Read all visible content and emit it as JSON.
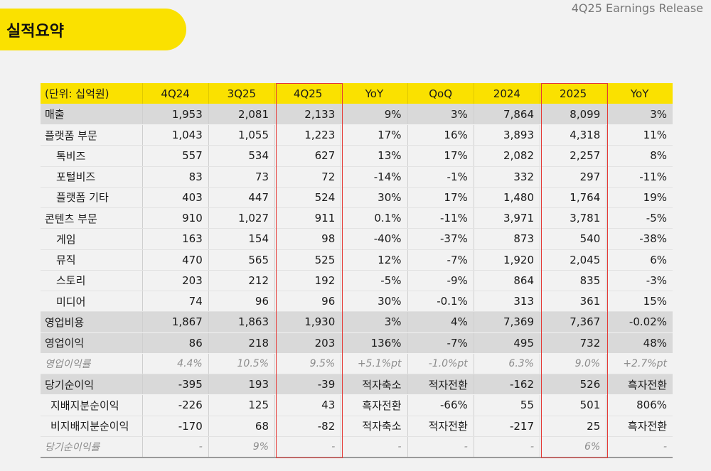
{
  "header": {
    "title": "실적요약",
    "report_label": "4Q25 Earnings Release"
  },
  "table": {
    "columns": [
      "(단위: 십억원)",
      "4Q24",
      "3Q25",
      "4Q25",
      "YoY",
      "QoQ",
      "2024",
      "2025",
      "YoY"
    ],
    "rows": [
      {
        "label": "매출",
        "style": "shade",
        "cells": [
          "1,953",
          "2,081",
          "2,133",
          "9%",
          "3%",
          "7,864",
          "8,099",
          "3%"
        ]
      },
      {
        "label": "플랫폼 부문",
        "style": "normal",
        "cells": [
          "1,043",
          "1,055",
          "1,223",
          "17%",
          "16%",
          "3,893",
          "4,318",
          "11%"
        ]
      },
      {
        "label": "톡비즈",
        "style": "sub",
        "cells": [
          "557",
          "534",
          "627",
          "13%",
          "17%",
          "2,082",
          "2,257",
          "8%"
        ]
      },
      {
        "label": "포털비즈",
        "style": "sub",
        "cells": [
          "83",
          "73",
          "72",
          "-14%",
          "-1%",
          "332",
          "297",
          "-11%"
        ]
      },
      {
        "label": "플랫폼 기타",
        "style": "sub",
        "cells": [
          "403",
          "447",
          "524",
          "30%",
          "17%",
          "1,480",
          "1,764",
          "19%"
        ]
      },
      {
        "label": "콘텐츠 부문",
        "style": "normal",
        "cells": [
          "910",
          "1,027",
          "911",
          "0.1%",
          "-11%",
          "3,971",
          "3,781",
          "-5%"
        ]
      },
      {
        "label": "게임",
        "style": "sub",
        "cells": [
          "163",
          "154",
          "98",
          "-40%",
          "-37%",
          "873",
          "540",
          "-38%"
        ]
      },
      {
        "label": "뮤직",
        "style": "sub",
        "cells": [
          "470",
          "565",
          "525",
          "12%",
          "-7%",
          "1,920",
          "2,045",
          "6%"
        ]
      },
      {
        "label": "스토리",
        "style": "sub",
        "cells": [
          "203",
          "212",
          "192",
          "-5%",
          "-9%",
          "864",
          "835",
          "-3%"
        ]
      },
      {
        "label": "미디어",
        "style": "sub",
        "cells": [
          "74",
          "96",
          "96",
          "30%",
          "-0.1%",
          "313",
          "361",
          "15%"
        ]
      },
      {
        "label": "영업비용",
        "style": "shade",
        "cells": [
          "1,867",
          "1,863",
          "1,930",
          "3%",
          "4%",
          "7,369",
          "7,367",
          "-0.02%"
        ]
      },
      {
        "label": "영업이익",
        "style": "shade",
        "cells": [
          "86",
          "218",
          "203",
          "136%",
          "-7%",
          "495",
          "732",
          "48%"
        ]
      },
      {
        "label": "영업이익률",
        "style": "italic",
        "cells": [
          "4.4%",
          "10.5%",
          "9.5%",
          "+5.1%pt",
          "-1.0%pt",
          "6.3%",
          "9.0%",
          "+2.7%pt"
        ]
      },
      {
        "label": "당기순이익",
        "style": "shade",
        "cells": [
          "-395",
          "193",
          "-39",
          "적자축소",
          "적자전환",
          "-162",
          "526",
          "흑자전환"
        ]
      },
      {
        "label": "지배지분순이익",
        "style": "sub2",
        "cells": [
          "-226",
          "125",
          "43",
          "흑자전환",
          "-66%",
          "55",
          "501",
          "806%"
        ]
      },
      {
        "label": "비지배지분순이익",
        "style": "sub2",
        "cells": [
          "-170",
          "68",
          "-82",
          "적자축소",
          "적자전환",
          "-217",
          "25",
          "흑자전환"
        ]
      },
      {
        "label": "당기순이익률",
        "style": "italic-last",
        "cells": [
          "-",
          "9%",
          "-",
          "-",
          "-",
          "-",
          "6%",
          "-"
        ]
      }
    ]
  }
}
